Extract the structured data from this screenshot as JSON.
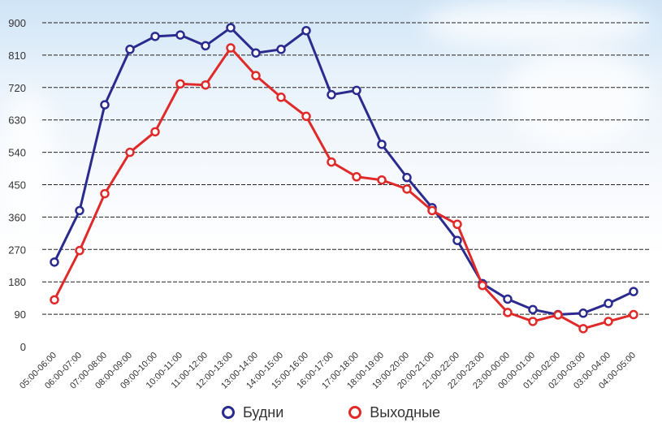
{
  "chart_data": {
    "type": "line",
    "categories": [
      "05:00-06:00",
      "06:00-07:00",
      "07:00-08:00",
      "08:00-09:00",
      "09:00-10:00",
      "10:00-11:00",
      "11:00-12:00",
      "12:00-13:00",
      "13:00-14:00",
      "14:00-15:00",
      "15:00-16:00",
      "16:00-17:00",
      "17:00-18:00",
      "18:00-19:00",
      "19:00-20:00",
      "20:00-21:00",
      "21:00-22:00",
      "22:00-23:00",
      "23:00-00:00",
      "00:00-01:00",
      "01:00-02:00",
      "02:00-03:00",
      "03:00-04:00",
      "04:00-05:00"
    ],
    "series": [
      {
        "name": "Будни",
        "color": "#2b2b8f",
        "values": [
          235,
          378,
          672,
          826,
          862,
          866,
          836,
          886,
          816,
          826,
          878,
          700,
          712,
          562,
          470,
          386,
          295,
          175,
          132,
          103,
          89,
          93,
          120,
          153
        ]
      },
      {
        "name": "Выходные",
        "color": "#e02a2a",
        "values": [
          130,
          267,
          425,
          540,
          597,
          730,
          727,
          830,
          753,
          693,
          640,
          513,
          472,
          463,
          438,
          378,
          340,
          170,
          95,
          70,
          88,
          50,
          70,
          89
        ]
      }
    ],
    "ylim": [
      0,
      900
    ],
    "yticks": [
      "0",
      "90",
      "180",
      "270",
      "360",
      "450",
      "540",
      "630",
      "720",
      "810",
      "900"
    ],
    "grid": true,
    "legend_position": "bottom-center"
  }
}
